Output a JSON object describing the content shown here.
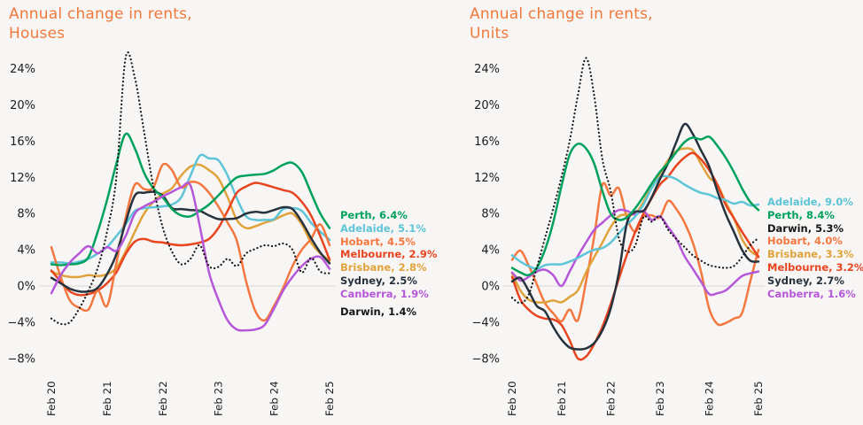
{
  "page": {
    "background": "#f7f6f4"
  },
  "chart_data": [
    {
      "type": "line",
      "title_line1": "Annual change in rents,",
      "title_line2": "Houses",
      "title_color": "#f0793c",
      "x_ticks": [
        "Feb 20",
        "Feb 21",
        "Feb 22",
        "Feb 23",
        "Feb 24",
        "Feb 25"
      ],
      "x_tick_months": [
        0,
        12,
        24,
        36,
        48,
        60
      ],
      "x_months": [
        0,
        2,
        4,
        6,
        8,
        10,
        12,
        14,
        16,
        18,
        20,
        22,
        24,
        26,
        28,
        30,
        32,
        34,
        36,
        38,
        40,
        42,
        44,
        46,
        48,
        50,
        52,
        54,
        56,
        58,
        60
      ],
      "y_ticks": [
        24,
        20,
        16,
        12,
        8,
        4,
        0,
        -4,
        -8
      ],
      "y_tick_labels": [
        "24%",
        "20%",
        "16%",
        "12%",
        "8%",
        "4%",
        "0%",
        "−4%",
        "−8%"
      ],
      "ylim": [
        -9,
        26
      ],
      "grid": "0% baseline only",
      "legend_position": "right",
      "legend": [
        {
          "city": "Perth",
          "value_pct": 6.4,
          "label": "Perth, 6.4%",
          "color": "#00a15d"
        },
        {
          "city": "Adelaide",
          "value_pct": 5.1,
          "label": "Adelaide, 5.1%",
          "color": "#5ec4d7"
        },
        {
          "city": "Hobart",
          "value_pct": 4.5,
          "label": "Hobart, 4.5%",
          "color": "#f4773f"
        },
        {
          "city": "Melbourne",
          "value_pct": 2.9,
          "label": "Melbourne, 2.9%",
          "color": "#e8441f"
        },
        {
          "city": "Brisbane",
          "value_pct": 2.8,
          "label": "Brisbane, 2.8%",
          "color": "#e0a33c"
        },
        {
          "city": "Sydney",
          "value_pct": 2.5,
          "label": "Sydney, 2.5%",
          "color": "#26323d"
        },
        {
          "city": "Canberra",
          "value_pct": 1.9,
          "label": "Canberra, 1.9%",
          "color": "#b557d8"
        },
        {
          "city": "Darwin",
          "value_pct": 1.4,
          "label": "Darwin, 1.4%",
          "color": "#161616"
        }
      ],
      "series": [
        {
          "name": "Brisbane",
          "color": "#e0a33c",
          "dashed": false,
          "values": [
            1.6,
            1.2,
            1.0,
            1.0,
            1.2,
            1.1,
            1.3,
            2.0,
            3.8,
            6.0,
            8.0,
            9.3,
            10.2,
            10.8,
            12.2,
            13.2,
            13.4,
            12.8,
            11.9,
            9.8,
            7.3,
            6.4,
            6.6,
            7.0,
            7.3,
            7.8,
            8.0,
            6.8,
            4.8,
            3.6,
            2.8
          ]
        },
        {
          "name": "Adelaide",
          "color": "#5ec4d7",
          "dashed": false,
          "values": [
            2.6,
            2.6,
            2.5,
            2.7,
            3.0,
            3.6,
            4.3,
            5.5,
            6.8,
            8.3,
            8.6,
            8.7,
            8.8,
            9.0,
            9.8,
            12.2,
            14.4,
            14.1,
            13.9,
            12.2,
            9.7,
            7.7,
            7.3,
            7.3,
            7.4,
            8.5,
            8.6,
            8.3,
            7.0,
            6.0,
            5.1
          ]
        },
        {
          "name": "Melbourne",
          "color": "#e8441f",
          "dashed": false,
          "values": [
            1.7,
            0.5,
            -0.6,
            -1.0,
            -0.9,
            -0.5,
            0.3,
            1.5,
            3.5,
            4.9,
            5.2,
            4.9,
            4.8,
            4.6,
            4.5,
            4.6,
            4.8,
            5.2,
            6.4,
            8.3,
            10.3,
            11.0,
            11.4,
            11.2,
            10.9,
            10.6,
            10.3,
            9.3,
            7.8,
            5.5,
            2.9
          ]
        },
        {
          "name": "Hobart",
          "color": "#f4773f",
          "dashed": false,
          "values": [
            4.3,
            1.0,
            -1.6,
            -2.4,
            -2.6,
            -0.5,
            -2.2,
            2.5,
            7.5,
            11.2,
            10.7,
            10.9,
            13.4,
            12.8,
            10.9,
            11.5,
            11.3,
            10.3,
            8.8,
            7.0,
            5.0,
            0.5,
            -2.8,
            -3.8,
            -2.2,
            -0.2,
            2.2,
            4.0,
            5.2,
            6.8,
            4.5
          ]
        },
        {
          "name": "Sydney",
          "color": "#26323d",
          "dashed": false,
          "values": [
            0.9,
            0.3,
            -0.3,
            -0.6,
            -0.6,
            -0.2,
            1.3,
            3.5,
            7.0,
            10.0,
            10.3,
            10.4,
            10.0,
            8.6,
            8.5,
            8.4,
            8.3,
            7.8,
            7.4,
            7.4,
            7.5,
            8.0,
            8.2,
            8.1,
            8.4,
            8.7,
            8.5,
            7.1,
            5.3,
            3.7,
            2.5
          ]
        },
        {
          "name": "Perth",
          "color": "#00a15d",
          "dashed": false,
          "values": [
            2.4,
            2.3,
            2.4,
            2.5,
            3.2,
            6.0,
            9.5,
            13.5,
            16.8,
            15.2,
            12.5,
            10.8,
            9.8,
            8.5,
            7.8,
            7.7,
            8.3,
            9.0,
            10.0,
            11.1,
            12.0,
            12.2,
            12.3,
            12.4,
            12.8,
            13.4,
            13.6,
            12.6,
            10.3,
            8.0,
            6.4
          ]
        },
        {
          "name": "Canberra",
          "color": "#b557d8",
          "dashed": false,
          "values": [
            -0.8,
            1.2,
            2.6,
            3.6,
            4.4,
            3.6,
            4.3,
            3.9,
            5.5,
            8.0,
            8.8,
            9.3,
            9.9,
            10.4,
            10.9,
            11.1,
            6.6,
            1.5,
            -1.5,
            -3.8,
            -4.8,
            -4.9,
            -4.8,
            -4.3,
            -2.5,
            -0.5,
            1.0,
            2.2,
            3.0,
            3.2,
            1.9
          ]
        },
        {
          "name": "Darwin",
          "color": "#161616",
          "dashed": true,
          "values": [
            -3.6,
            -4.2,
            -4.0,
            -2.5,
            -0.5,
            2.0,
            6.0,
            12.0,
            25.2,
            23.0,
            17.0,
            11.0,
            6.5,
            3.8,
            2.4,
            3.0,
            4.5,
            2.2,
            2.1,
            3.0,
            2.2,
            3.6,
            4.1,
            4.5,
            4.4,
            4.7,
            4.0,
            1.5,
            3.1,
            1.6,
            1.4
          ]
        }
      ]
    },
    {
      "type": "line",
      "title_line1": "Annual change in rents,",
      "title_line2": "Units",
      "title_color": "#f0793c",
      "x_ticks": [
        "Feb 20",
        "Feb 21",
        "Feb 22",
        "Feb 23",
        "Feb 24",
        "Feb 25"
      ],
      "x_tick_months": [
        0,
        12,
        24,
        36,
        48,
        60
      ],
      "x_months": [
        0,
        2,
        4,
        6,
        8,
        10,
        12,
        14,
        16,
        18,
        20,
        22,
        24,
        26,
        28,
        30,
        32,
        34,
        36,
        38,
        40,
        42,
        44,
        46,
        48,
        50,
        52,
        54,
        56,
        58,
        60
      ],
      "y_ticks": [
        24,
        20,
        16,
        12,
        8,
        4,
        0,
        -4,
        -8
      ],
      "y_tick_labels": [
        "24%",
        "20%",
        "16%",
        "12%",
        "8%",
        "4%",
        "0%",
        "−4%",
        "−8%"
      ],
      "ylim": [
        -9,
        26
      ],
      "grid": "0% baseline only",
      "legend_position": "right",
      "legend": [
        {
          "city": "Adelaide",
          "value_pct": 9.0,
          "label": "Adelaide, 9.0%",
          "color": "#5ec4d7"
        },
        {
          "city": "Perth",
          "value_pct": 8.4,
          "label": "Perth, 8.4%",
          "color": "#00a15d"
        },
        {
          "city": "Darwin",
          "value_pct": 5.3,
          "label": "Darwin, 5.3%",
          "color": "#161616"
        },
        {
          "city": "Hobart",
          "value_pct": 4.0,
          "label": "Hobart, 4.0%",
          "color": "#f4773f"
        },
        {
          "city": "Brisbane",
          "value_pct": 3.3,
          "label": "Brisbane, 3.3%",
          "color": "#e0a33c"
        },
        {
          "city": "Melbourne",
          "value_pct": 3.2,
          "label": "Melbourne, 3.2%",
          "color": "#e8441f"
        },
        {
          "city": "Sydney",
          "value_pct": 2.7,
          "label": "Sydney, 2.7%",
          "color": "#26323d"
        },
        {
          "city": "Canberra",
          "value_pct": 1.6,
          "label": "Canberra, 1.6%",
          "color": "#b557d8"
        }
      ],
      "series": [
        {
          "name": "Hobart",
          "color": "#f4773f",
          "dashed": false,
          "values": [
            2.9,
            3.9,
            2.3,
            0.2,
            -1.9,
            -3.0,
            -3.9,
            -2.6,
            -3.8,
            0.5,
            5.5,
            11.2,
            10.0,
            10.8,
            7.5,
            6.0,
            7.7,
            7.8,
            7.6,
            9.4,
            8.5,
            7.0,
            4.8,
            1.6,
            -2.5,
            -4.2,
            -4.1,
            -3.6,
            -3.0,
            0.5,
            4.0
          ]
        },
        {
          "name": "Brisbane",
          "color": "#e0a33c",
          "dashed": false,
          "values": [
            1.4,
            -0.5,
            -1.5,
            -1.8,
            -1.8,
            -1.6,
            -1.8,
            -1.2,
            -0.5,
            1.5,
            3.2,
            4.8,
            6.5,
            7.7,
            7.9,
            8.0,
            9.3,
            11.0,
            12.4,
            13.9,
            14.9,
            15.2,
            15.0,
            13.5,
            12.0,
            11.2,
            9.3,
            7.5,
            5.2,
            3.9,
            3.3
          ]
        },
        {
          "name": "Melbourne",
          "color": "#e8441f",
          "dashed": false,
          "values": [
            1.0,
            -1.5,
            -2.6,
            -3.3,
            -3.6,
            -3.7,
            -4.3,
            -6.0,
            -8.0,
            -7.8,
            -6.4,
            -4.5,
            -2.0,
            0.8,
            3.5,
            6.0,
            8.0,
            9.7,
            11.2,
            12.1,
            13.3,
            14.2,
            14.7,
            14.0,
            12.8,
            11.2,
            9.0,
            7.5,
            6.0,
            4.6,
            3.2
          ]
        },
        {
          "name": "Canberra",
          "color": "#b557d8",
          "dashed": false,
          "values": [
            1.5,
            0.6,
            1.0,
            1.6,
            1.8,
            1.2,
            0.0,
            1.6,
            3.3,
            4.8,
            6.2,
            7.0,
            7.8,
            8.4,
            8.3,
            7.9,
            8.3,
            7.3,
            7.7,
            6.5,
            5.2,
            3.3,
            1.9,
            0.5,
            -0.9,
            -0.8,
            -0.5,
            0.3,
            1.1,
            1.4,
            1.6
          ]
        },
        {
          "name": "Adelaide",
          "color": "#5ec4d7",
          "dashed": false,
          "values": [
            3.4,
            2.7,
            2.2,
            1.9,
            2.3,
            2.4,
            2.4,
            2.7,
            3.1,
            3.6,
            4.0,
            4.2,
            4.8,
            5.8,
            6.8,
            7.7,
            9.0,
            10.8,
            12.0,
            12.1,
            11.8,
            11.2,
            10.7,
            10.3,
            10.1,
            9.7,
            9.5,
            9.1,
            9.3,
            8.9,
            9.0
          ]
        },
        {
          "name": "Sydney",
          "color": "#26323d",
          "dashed": false,
          "values": [
            0.5,
            0.9,
            -0.5,
            -2.2,
            -2.8,
            -4.5,
            -5.9,
            -6.8,
            -7.0,
            -6.9,
            -6.3,
            -4.9,
            -2.5,
            1.5,
            7.0,
            8.2,
            8.3,
            9.8,
            11.8,
            13.6,
            15.9,
            17.9,
            16.8,
            15.0,
            13.2,
            10.5,
            8.0,
            6.0,
            4.0,
            2.8,
            2.7
          ]
        },
        {
          "name": "Perth",
          "color": "#00a15d",
          "dashed": false,
          "values": [
            2.0,
            1.5,
            1.2,
            2.0,
            4.0,
            7.0,
            11.0,
            14.5,
            15.7,
            15.2,
            13.5,
            10.5,
            8.0,
            7.3,
            7.6,
            8.6,
            9.9,
            11.3,
            12.6,
            13.6,
            14.8,
            15.9,
            16.4,
            16.2,
            16.5,
            15.5,
            14.2,
            12.6,
            10.8,
            9.3,
            8.4
          ]
        },
        {
          "name": "Darwin",
          "color": "#161616",
          "dashed": true,
          "values": [
            -1.3,
            -1.9,
            -1.0,
            2.0,
            5.3,
            8.5,
            12.0,
            16.0,
            21.0,
            25.2,
            21.0,
            14.0,
            10.5,
            5.3,
            3.8,
            4.5,
            7.6,
            7.1,
            7.7,
            6.2,
            5.2,
            4.3,
            3.4,
            2.8,
            2.3,
            2.1,
            2.0,
            2.2,
            3.2,
            4.5,
            5.3
          ]
        }
      ]
    }
  ]
}
